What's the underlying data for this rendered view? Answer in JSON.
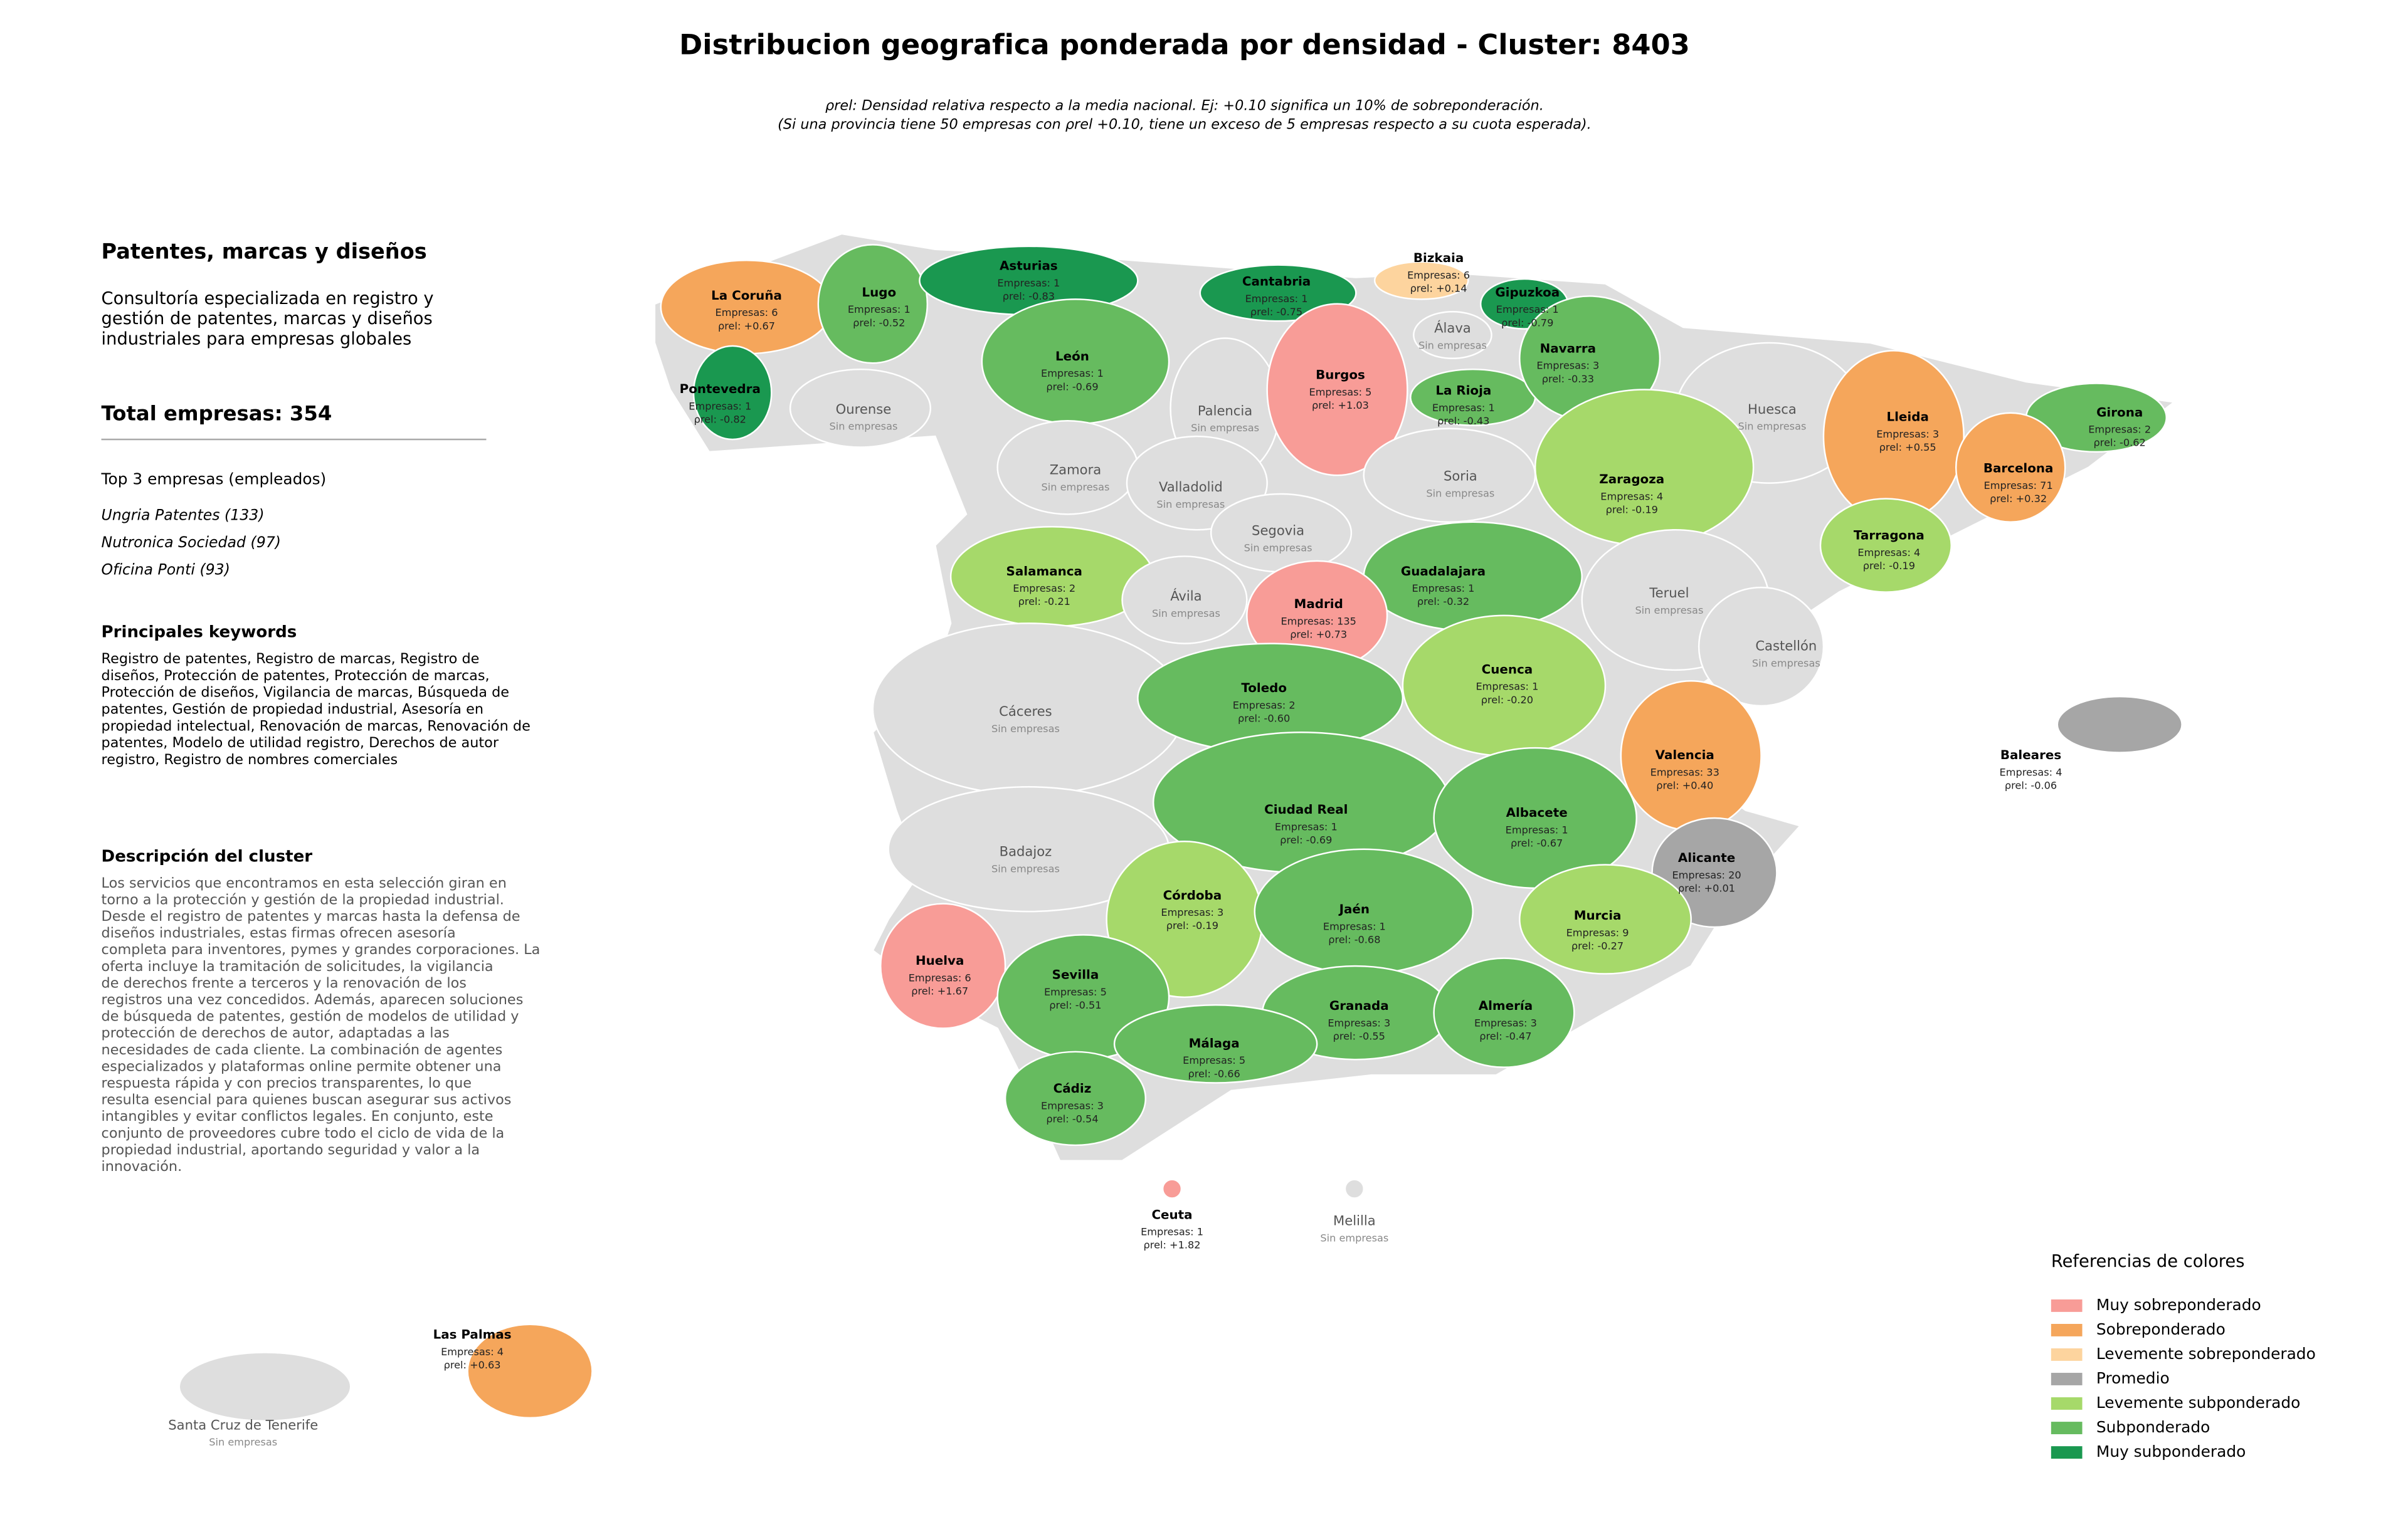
{
  "title": "Distribucion geografica ponderada por densidad - Cluster: 8403",
  "subtitle_lines": [
    "ρrel: Densidad relativa respecto a la media nacional. Ej: +0.10 significa un 10% de sobreponderación.",
    "(Si una provincia tiene 50 empresas con ρrel +0.10, tiene un exceso de 5 empresas respecto a su cuota esperada)."
  ],
  "sidebar": {
    "title": "Patentes, marcas y diseños",
    "description_lines": [
      "Consultoría especializada en registro y",
      "gestión de patentes, marcas y diseños",
      "industriales para empresas globales"
    ],
    "total": "Total empresas: 354",
    "top_heading": "Top 3 empresas (empleados)",
    "top_companies": [
      "Ungria Patentes (133)",
      "Nutronica Sociedad (97)",
      "Oficina Ponti (93)"
    ],
    "keywords_heading": "Principales keywords",
    "keywords_lines": [
      "Registro de patentes, Registro de marcas, Registro de",
      "diseños, Protección de patentes, Protección de marcas,",
      "Protección de diseños, Vigilancia de marcas, Búsqueda de",
      "patentes, Gestión de propiedad industrial, Asesoría en",
      "propiedad intelectual, Renovación de marcas, Renovación de",
      "patentes, Modelo de utilidad registro, Derechos de autor",
      "registro, Registro de nombres comerciales"
    ],
    "cluster_heading": "Descripción del cluster",
    "cluster_lines": [
      "Los servicios que encontramos en esta selección giran en",
      "torno a la protección y gestión de la propiedad industrial.",
      "Desde el registro de patentes y marcas hasta la defensa de",
      "diseños industriales, estas firmas ofrecen asesoría",
      "completa para inventores, pymes y grandes corporaciones. La",
      "oferta incluye la tramitación de solicitudes, la vigilancia",
      "de derechos frente a terceros y la renovación de los",
      "registros una vez concedidos. Además, aparecen soluciones",
      "de búsqueda de patentes, gestión de modelos de utilidad y",
      "protección de derechos de autor, adaptadas a las",
      "necesidades de cada cliente. La combinación de agentes",
      "especializados y plataformas online permite obtener una",
      "respuesta rápida y con precios transparentes, lo que",
      "resulta esencial para quienes buscan asegurar sus activos",
      "intangibles y evitar conflictos legales. En conjunto, este",
      "conjunto de proveedores cubre todo el ciclo de vida de la",
      "propiedad industrial, aportando seguridad y valor a la",
      "innovación."
    ]
  },
  "provinces": [
    {
      "name": "La Coruña",
      "detail": [
        "Empresas: 6",
        "ρrel: +0.67"
      ],
      "color": "#f5a65b"
    },
    {
      "name": "Lugo",
      "detail": [
        "Empresas: 1",
        "ρrel: -0.52"
      ],
      "color": "#66bb5f"
    },
    {
      "name": "Asturias",
      "detail": [
        "Empresas: 1",
        "ρrel: -0.83"
      ],
      "color": "#1a9850"
    },
    {
      "name": "Cantabria",
      "detail": [
        "Empresas: 1",
        "ρrel: -0.75"
      ],
      "color": "#1a9850"
    },
    {
      "name": "Bizkaia",
      "detail": [
        "Empresas: 6",
        "ρrel: +0.14"
      ],
      "color": "#fdd49e"
    },
    {
      "name": "Gipuzkoa",
      "detail": [
        "Empresas: 1",
        "ρrel: -0.79"
      ],
      "color": "#1a9850"
    },
    {
      "name": "Pontevedra",
      "detail": [
        "Empresas: 1",
        "ρrel: -0.82"
      ],
      "color": "#1a9850"
    },
    {
      "name": "Ourense",
      "detail": [
        "Sin empresas"
      ],
      "color": "#dedede"
    },
    {
      "name": "León",
      "detail": [
        "Empresas: 1",
        "ρrel: -0.69"
      ],
      "color": "#66bb5f"
    },
    {
      "name": "Palencia",
      "detail": [
        "Sin empresas"
      ],
      "color": "#dedede"
    },
    {
      "name": "Burgos",
      "detail": [
        "Empresas: 5",
        "ρrel: +1.03"
      ],
      "color": "#f89c97"
    },
    {
      "name": "Álava",
      "detail": [
        "Sin empresas"
      ],
      "color": "#dedede"
    },
    {
      "name": "La Rioja",
      "detail": [
        "Empresas: 1",
        "ρrel: -0.43"
      ],
      "color": "#66bb5f"
    },
    {
      "name": "Navarra",
      "detail": [
        "Empresas: 3",
        "ρrel: -0.33"
      ],
      "color": "#66bb5f"
    },
    {
      "name": "Huesca",
      "detail": [
        "Sin empresas"
      ],
      "color": "#dedede"
    },
    {
      "name": "Lleida",
      "detail": [
        "Empresas: 3",
        "ρrel: +0.55"
      ],
      "color": "#f5a65b"
    },
    {
      "name": "Girona",
      "detail": [
        "Empresas: 2",
        "ρrel: -0.62"
      ],
      "color": "#66bb5f"
    },
    {
      "name": "Zamora",
      "detail": [
        "Sin empresas"
      ],
      "color": "#dedede"
    },
    {
      "name": "Valladolid",
      "detail": [
        "Sin empresas"
      ],
      "color": "#dedede"
    },
    {
      "name": "Soria",
      "detail": [
        "Sin empresas"
      ],
      "color": "#dedede"
    },
    {
      "name": "Zaragoza",
      "detail": [
        "Empresas: 4",
        "ρrel: -0.19"
      ],
      "color": "#a6d96a"
    },
    {
      "name": "Barcelona",
      "detail": [
        "Empresas: 71",
        "ρrel: +0.32"
      ],
      "color": "#f5a65b"
    },
    {
      "name": "Segovia",
      "detail": [
        "Sin empresas"
      ],
      "color": "#dedede"
    },
    {
      "name": "Salamanca",
      "detail": [
        "Empresas: 2",
        "ρrel: -0.21"
      ],
      "color": "#a6d96a"
    },
    {
      "name": "Guadalajara",
      "detail": [
        "Empresas: 1",
        "ρrel: -0.32"
      ],
      "color": "#66bb5f"
    },
    {
      "name": "Tarragona",
      "detail": [
        "Empresas: 4",
        "ρrel: -0.19"
      ],
      "color": "#a6d96a"
    },
    {
      "name": "Ávila",
      "detail": [
        "Sin empresas"
      ],
      "color": "#dedede"
    },
    {
      "name": "Madrid",
      "detail": [
        "Empresas: 135",
        "ρrel: +0.73"
      ],
      "color": "#f89c97"
    },
    {
      "name": "Teruel",
      "detail": [
        "Sin empresas"
      ],
      "color": "#dedede"
    },
    {
      "name": "Castellón",
      "detail": [
        "Sin empresas"
      ],
      "color": "#dedede"
    },
    {
      "name": "Cáceres",
      "detail": [
        "Sin empresas"
      ],
      "color": "#dedede"
    },
    {
      "name": "Toledo",
      "detail": [
        "Empresas: 2",
        "ρrel: -0.60"
      ],
      "color": "#66bb5f"
    },
    {
      "name": "Cuenca",
      "detail": [
        "Empresas: 1",
        "ρrel: -0.20"
      ],
      "color": "#a6d96a"
    },
    {
      "name": "Valencia",
      "detail": [
        "Empresas: 33",
        "ρrel: +0.40"
      ],
      "color": "#f5a65b"
    },
    {
      "name": "Badajoz",
      "detail": [
        "Sin empresas"
      ],
      "color": "#dedede"
    },
    {
      "name": "Ciudad Real",
      "detail": [
        "Empresas: 1",
        "ρrel: -0.69"
      ],
      "color": "#66bb5f"
    },
    {
      "name": "Albacete",
      "detail": [
        "Empresas: 1",
        "ρrel: -0.67"
      ],
      "color": "#66bb5f"
    },
    {
      "name": "Alicante",
      "detail": [
        "Empresas: 20",
        "ρrel: +0.01"
      ],
      "color": "#a6a6a6"
    },
    {
      "name": "Baleares",
      "detail": [
        "Empresas: 4",
        "ρrel: -0.06"
      ],
      "color": "#a6a6a6"
    },
    {
      "name": "Córdoba",
      "detail": [
        "Empresas: 3",
        "ρrel: -0.19"
      ],
      "color": "#a6d96a"
    },
    {
      "name": "Jaén",
      "detail": [
        "Empresas: 1",
        "ρrel: -0.68"
      ],
      "color": "#66bb5f"
    },
    {
      "name": "Murcia",
      "detail": [
        "Empresas: 9",
        "ρrel: -0.27"
      ],
      "color": "#a6d96a"
    },
    {
      "name": "Huelva",
      "detail": [
        "Empresas: 6",
        "ρrel: +1.67"
      ],
      "color": "#f89c97"
    },
    {
      "name": "Sevilla",
      "detail": [
        "Empresas: 5",
        "ρrel: -0.51"
      ],
      "color": "#66bb5f"
    },
    {
      "name": "Granada",
      "detail": [
        "Empresas: 3",
        "ρrel: -0.55"
      ],
      "color": "#66bb5f"
    },
    {
      "name": "Almería",
      "detail": [
        "Empresas: 3",
        "ρrel: -0.47"
      ],
      "color": "#66bb5f"
    },
    {
      "name": "Málaga",
      "detail": [
        "Empresas: 5",
        "ρrel: -0.66"
      ],
      "color": "#66bb5f"
    },
    {
      "name": "Cádiz",
      "detail": [
        "Empresas: 3",
        "ρrel: -0.54"
      ],
      "color": "#66bb5f"
    },
    {
      "name": "Ceuta",
      "detail": [
        "Empresas: 1",
        "ρrel: +1.82"
      ],
      "color": "#f89c97"
    },
    {
      "name": "Melilla",
      "detail": [
        "Sin empresas"
      ],
      "color": "#dedede"
    },
    {
      "name": "Las Palmas",
      "detail": [
        "Empresas: 4",
        "ρrel: +0.63"
      ],
      "color": "#f5a65b"
    },
    {
      "name": "Santa Cruz de Tenerife",
      "detail": [
        "Sin empresas"
      ],
      "color": "#dedede"
    }
  ],
  "legend": {
    "title": "Referencias de colores",
    "items": [
      {
        "name": "Muy sobreponderado",
        "color": "#f89c97"
      },
      {
        "name": "Sobreponderado",
        "color": "#f5a65b"
      },
      {
        "name": "Levemente sobreponderado",
        "color": "#fdd49e"
      },
      {
        "name": "Promedio",
        "color": "#a6a6a6"
      },
      {
        "name": "Levemente subponderado",
        "color": "#a6d96a"
      },
      {
        "name": "Subponderado",
        "color": "#66bb5f"
      },
      {
        "name": "Muy subponderado",
        "color": "#1a9850"
      }
    ]
  }
}
